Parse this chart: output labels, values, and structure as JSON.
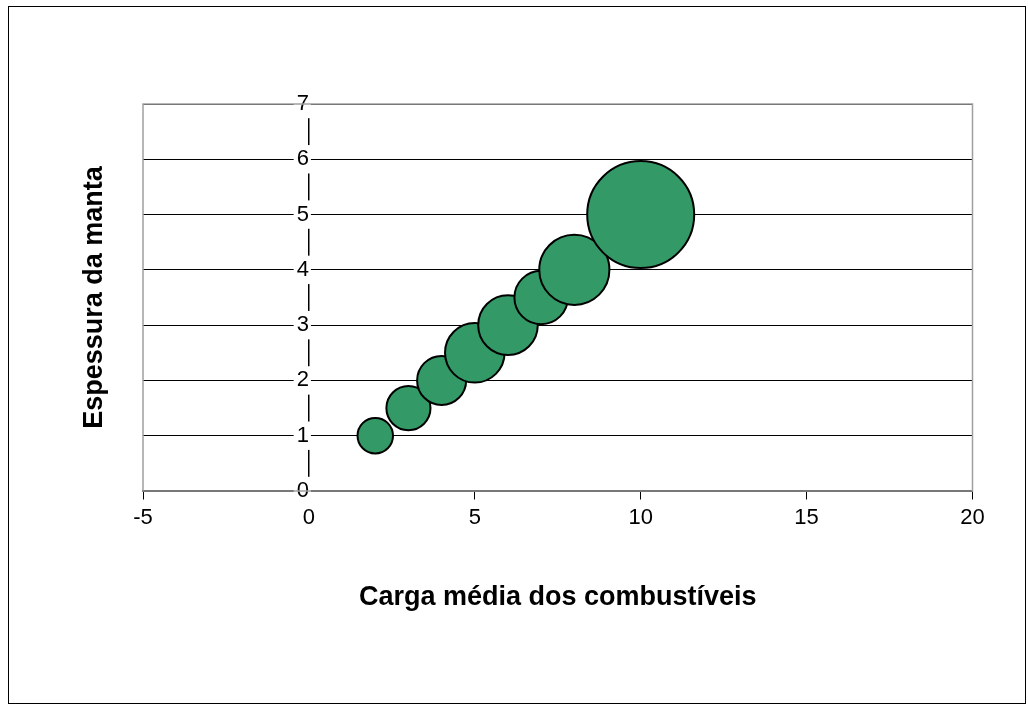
{
  "chart_data": {
    "type": "bubble",
    "xlabel": "Carga média dos combustíveis",
    "ylabel": "Espessura da manta",
    "x": [
      2,
      3,
      4,
      5,
      6,
      7,
      8,
      10
    ],
    "series": [
      {
        "color": "#339966",
        "values": [
          1,
          1.5,
          2,
          2.5,
          3,
          3.5,
          4,
          5
        ],
        "sizes": [
          0.11,
          0.17,
          0.21,
          0.31,
          0.31,
          0.25,
          0.43,
          1
        ]
      }
    ],
    "xlim": [
      -5,
      20
    ],
    "xticks": [
      -5,
      0,
      5,
      10,
      15,
      20
    ],
    "ylim": [
      0,
      7
    ],
    "yticks": [
      0,
      1,
      2,
      3,
      4,
      5,
      6,
      7
    ],
    "grid": "y",
    "legend": false
  }
}
